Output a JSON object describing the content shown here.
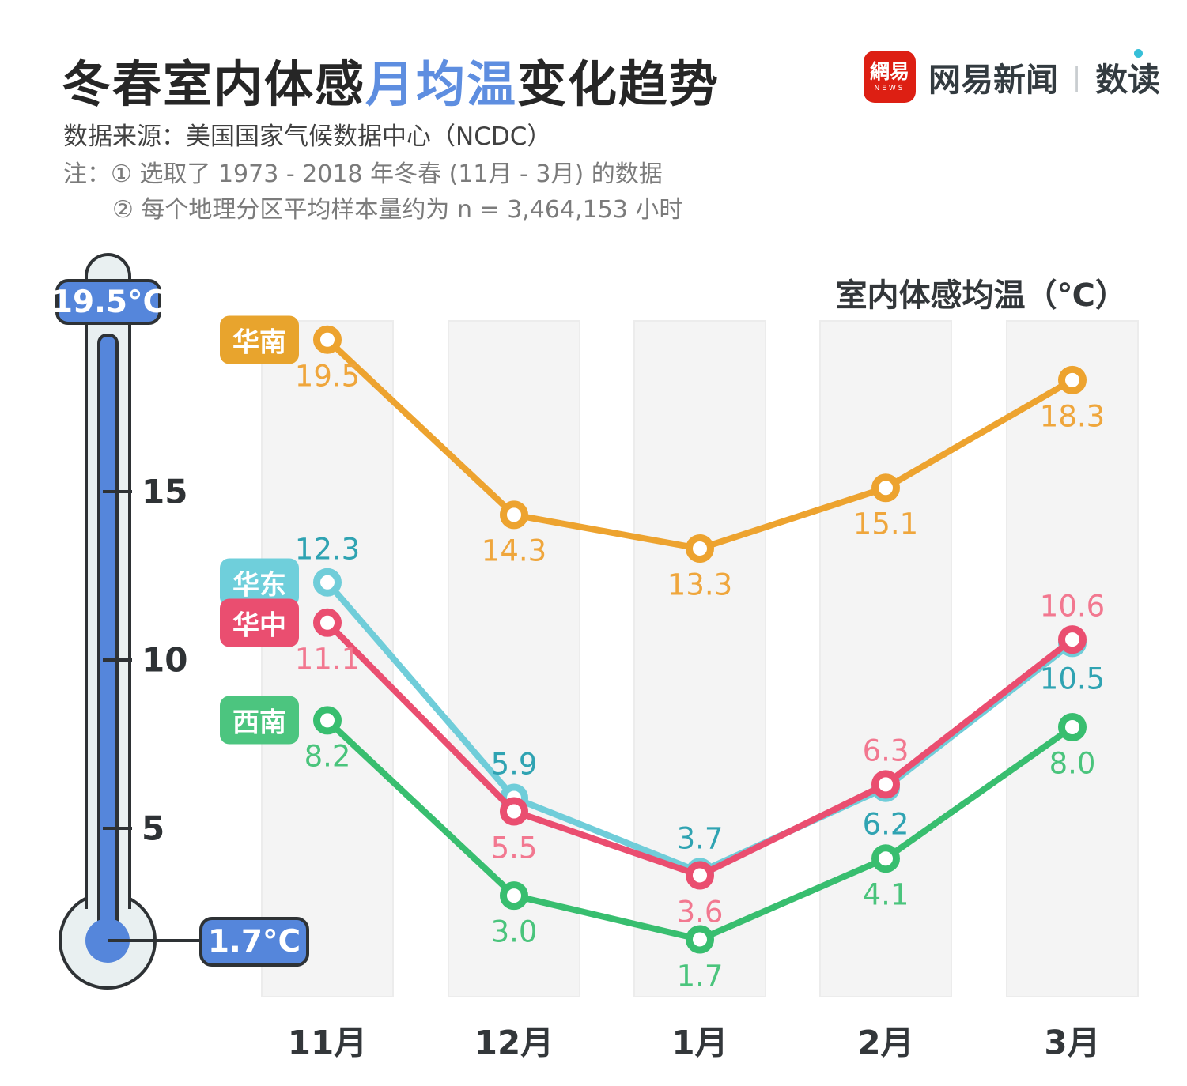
{
  "header": {
    "title_prefix": "冬春室内体感",
    "title_highlight": "月均温",
    "title_suffix": "变化趋势",
    "title_highlight_color": "#5E8EE0",
    "logo": {
      "icon_text": "網易",
      "icon_sub": "NEWS",
      "icon_color": "#DD1F13",
      "brand": "网易新闻",
      "divider": "|",
      "sub_brand": "数读"
    },
    "source": "数据来源：美国国家气候数据中心（NCDC）",
    "notes": [
      "注：① 选取了 1973 - 2018 年冬春 (11月 - 3月) 的数据",
      "② 每个地理分区平均样本量约为 n = 3,464,153 小时"
    ]
  },
  "thermometer": {
    "max_label": "19.5°C",
    "min_label": "1.7°C",
    "liquid_top_value": 19.5,
    "bulb_value": 1.7,
    "ticks": [
      {
        "value": 15,
        "label": "15"
      },
      {
        "value": 10,
        "label": "10"
      },
      {
        "value": 5,
        "label": "5"
      }
    ],
    "colors": {
      "liquid": "#5586DB",
      "glass": "#E9F0F1",
      "outline": "#2E3235"
    }
  },
  "chart_data": {
    "type": "line",
    "title": "室内体感均温（℃）",
    "categories": [
      "11月",
      "12月",
      "1月",
      "2月",
      "3月"
    ],
    "ylim": [
      0,
      21
    ],
    "yticks": [
      5,
      10,
      15
    ],
    "grid": "column-bands",
    "legend_position": "left-of-first-point",
    "series": [
      {
        "id": "south-china",
        "name": "华南",
        "color": "#EDA32F",
        "badge_color": "#E8A42D",
        "label_color": "#EFA63C",
        "values": [
          19.5,
          14.3,
          13.3,
          15.1,
          18.3
        ],
        "labels": [
          "19.5",
          "14.3",
          "13.3",
          "15.1",
          "18.3"
        ],
        "label_side": [
          "below",
          "below",
          "below",
          "below",
          "below"
        ]
      },
      {
        "id": "east-china",
        "name": "华东",
        "color": "#70CDD9",
        "badge_color": "#6FCFDB",
        "label_color": "#2FA3B2",
        "values": [
          12.3,
          5.9,
          3.7,
          6.2,
          10.5
        ],
        "labels": [
          "12.3",
          "5.9",
          "3.7",
          "6.2",
          "10.5"
        ],
        "label_side": [
          "above",
          "above",
          "above",
          "below",
          "below"
        ]
      },
      {
        "id": "southwest",
        "name": "西南",
        "color": "#38BE6F",
        "badge_color": "#4CC57F",
        "label_color": "#4AC47C",
        "values": [
          8.2,
          3.0,
          1.7,
          4.1,
          8.0
        ],
        "labels": [
          "8.2",
          "3.0",
          "1.7",
          "4.1",
          "8.0"
        ],
        "label_side": [
          "below",
          "below",
          "below",
          "below",
          "below"
        ]
      },
      {
        "id": "central-china",
        "name": "华中",
        "color": "#EA4E70",
        "badge_color": "#EA4E70",
        "label_color": "#F27890",
        "values": [
          11.1,
          5.5,
          3.6,
          6.3,
          10.6
        ],
        "labels": [
          "11.1",
          "5.5",
          "3.6",
          "6.3",
          "10.6"
        ],
        "label_side": [
          "below",
          "below",
          "below",
          "above",
          "above"
        ]
      }
    ]
  }
}
